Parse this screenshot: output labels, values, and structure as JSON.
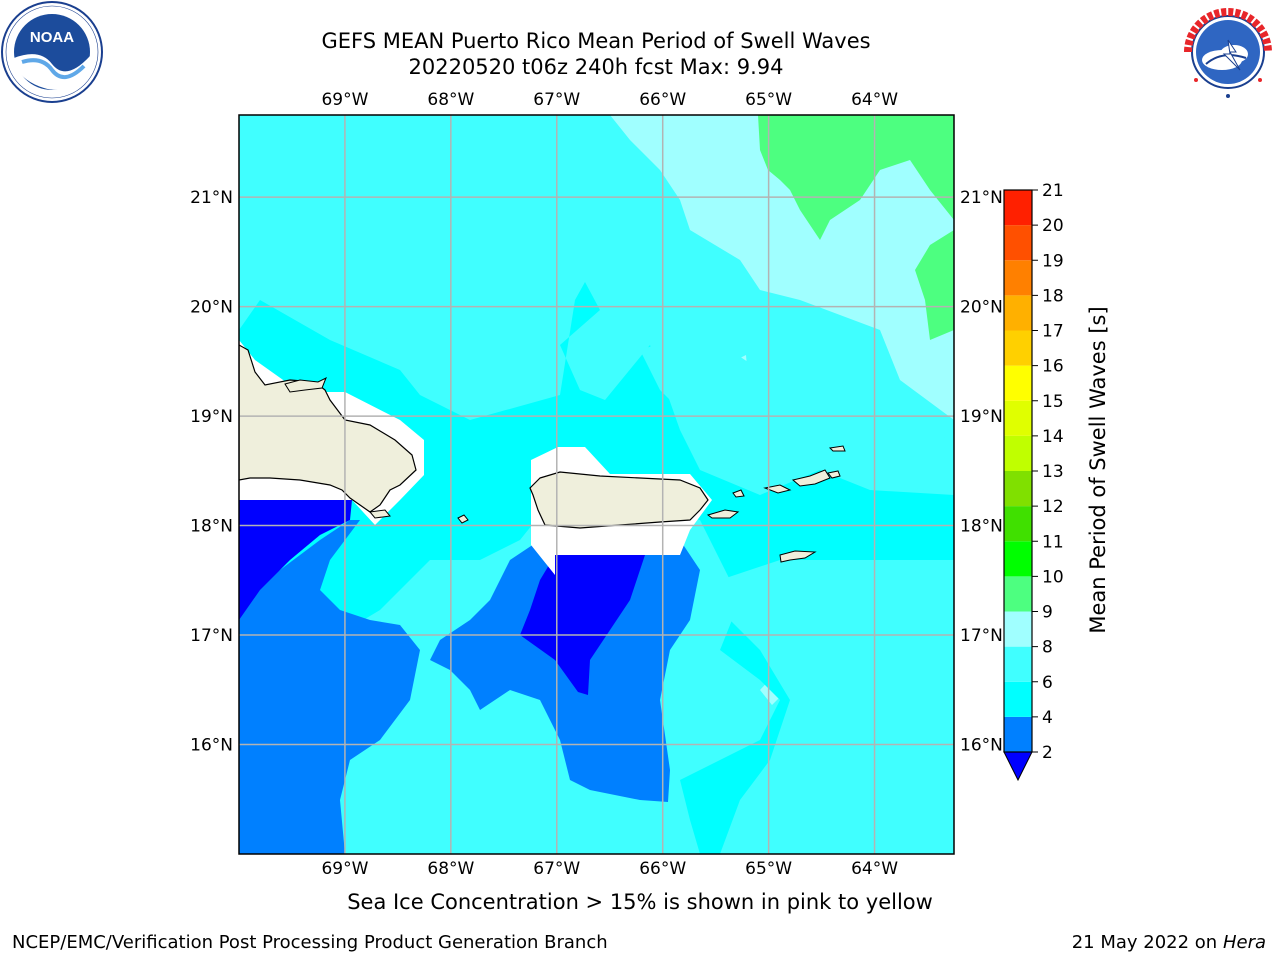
{
  "title_line1": "GEFS MEAN Puerto Rico Mean Period of Swell Waves",
  "title_line2": "20220520 t06z 240h fcst   Max: 9.94",
  "logos": {
    "left": {
      "name": "noaa-logo",
      "text": "NOAA",
      "ring_text": "NATIONAL OCEANIC AND ATMOSPHERIC ADMINISTRATION · U.S. DEPARTMENT OF COMMERCE"
    },
    "right": {
      "name": "nws-logo",
      "ring_text": "NATIONAL WEATHER SERVICE"
    }
  },
  "map": {
    "lon_range": [
      -70.0,
      -63.25
    ],
    "lat_range": [
      15.0,
      21.75
    ],
    "lon_ticks": [
      "69°W",
      "68°W",
      "67°W",
      "66°W",
      "65°W",
      "64°W"
    ],
    "lat_ticks": [
      "16°N",
      "17°N",
      "18°N",
      "19°N",
      "20°N",
      "21°N"
    ],
    "gridlines": true,
    "land_color": "#efefdc"
  },
  "colorbar": {
    "label": "Mean Period of Swell Waves [s]",
    "ticks": [
      "2",
      "4",
      "6",
      "8",
      "9",
      "10",
      "11",
      "12",
      "13",
      "14",
      "15",
      "16",
      "17",
      "18",
      "19",
      "20",
      "21"
    ],
    "colors": [
      "#0000ff",
      "#0080ff",
      "#00ffff",
      "#40ffff",
      "#a0ffff",
      "#4dff80",
      "#00ff00",
      "#40e000",
      "#80e000",
      "#c0ff00",
      "#e0ff00",
      "#ffff00",
      "#ffd000",
      "#ffb000",
      "#ff8000",
      "#ff5000",
      "#ff2000",
      "#ff0000"
    ],
    "extend": "min"
  },
  "footer_note": "Sea Ice Concentration > 15% is shown in pink to yellow",
  "footer_left": "NCEP/EMC/Verification Post Processing Product Generation Branch",
  "footer_right": {
    "date": "21 May 2022 on",
    "machine": "Hera"
  }
}
